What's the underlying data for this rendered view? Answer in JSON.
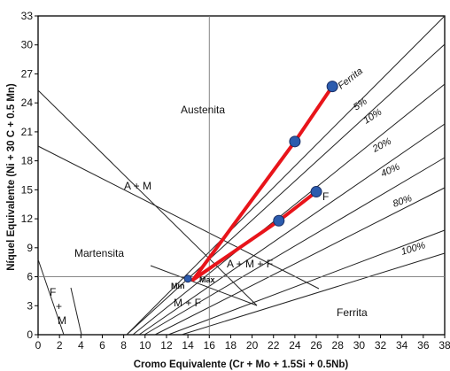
{
  "chart_data": {
    "type": "line",
    "x_axis": {
      "label": "Cromo Equivalente (Cr + Mo + 1.5Si + 0.5Nb)",
      "range": [
        0,
        38
      ],
      "ticks": [
        "0",
        "2",
        "4",
        "6",
        "8",
        "10",
        "12",
        "14",
        "16",
        "18",
        "20",
        "22",
        "24",
        "26",
        "28",
        "30",
        "32",
        "34",
        "36",
        "38"
      ]
    },
    "y_axis": {
      "label": "Níquel Equivalente   (Ni + 30 C + 0.5 Mn)",
      "range": [
        0,
        33
      ],
      "ticks": [
        "0",
        "3",
        "6",
        "9",
        "12",
        "15",
        "18",
        "21",
        "24",
        "27",
        "30",
        "33"
      ]
    },
    "regions": [
      "Austenita",
      "A + M",
      "Martensita",
      "A + M + F",
      "M + F",
      "Ferrita",
      "F",
      "+",
      "M"
    ],
    "ferrite_labels": [
      "Ferrita",
      "5%",
      "10%",
      "20%",
      "40%",
      "80%",
      "100%"
    ],
    "small_labels": [
      "Min",
      "Max"
    ],
    "point_labels": [
      "F"
    ],
    "highlight_points": [
      {
        "x": 14,
        "y": 5.8
      },
      {
        "x": 24,
        "y": 20
      },
      {
        "x": 27.5,
        "y": 25.7
      },
      {
        "x": 22.5,
        "y": 11.8
      },
      {
        "x": 26,
        "y": 14.8
      }
    ],
    "highlight_lines": [
      [
        [
          14.5,
          5.7
        ],
        [
          24,
          20
        ],
        [
          27.5,
          25.7
        ]
      ],
      [
        [
          14.5,
          5.7
        ],
        [
          22.5,
          11.8
        ],
        [
          26,
          14.8
        ]
      ]
    ],
    "reference_lines": {
      "x": 16,
      "y": 6
    },
    "highlight_color": "#e8141a",
    "point_color": "#2c5cae"
  }
}
